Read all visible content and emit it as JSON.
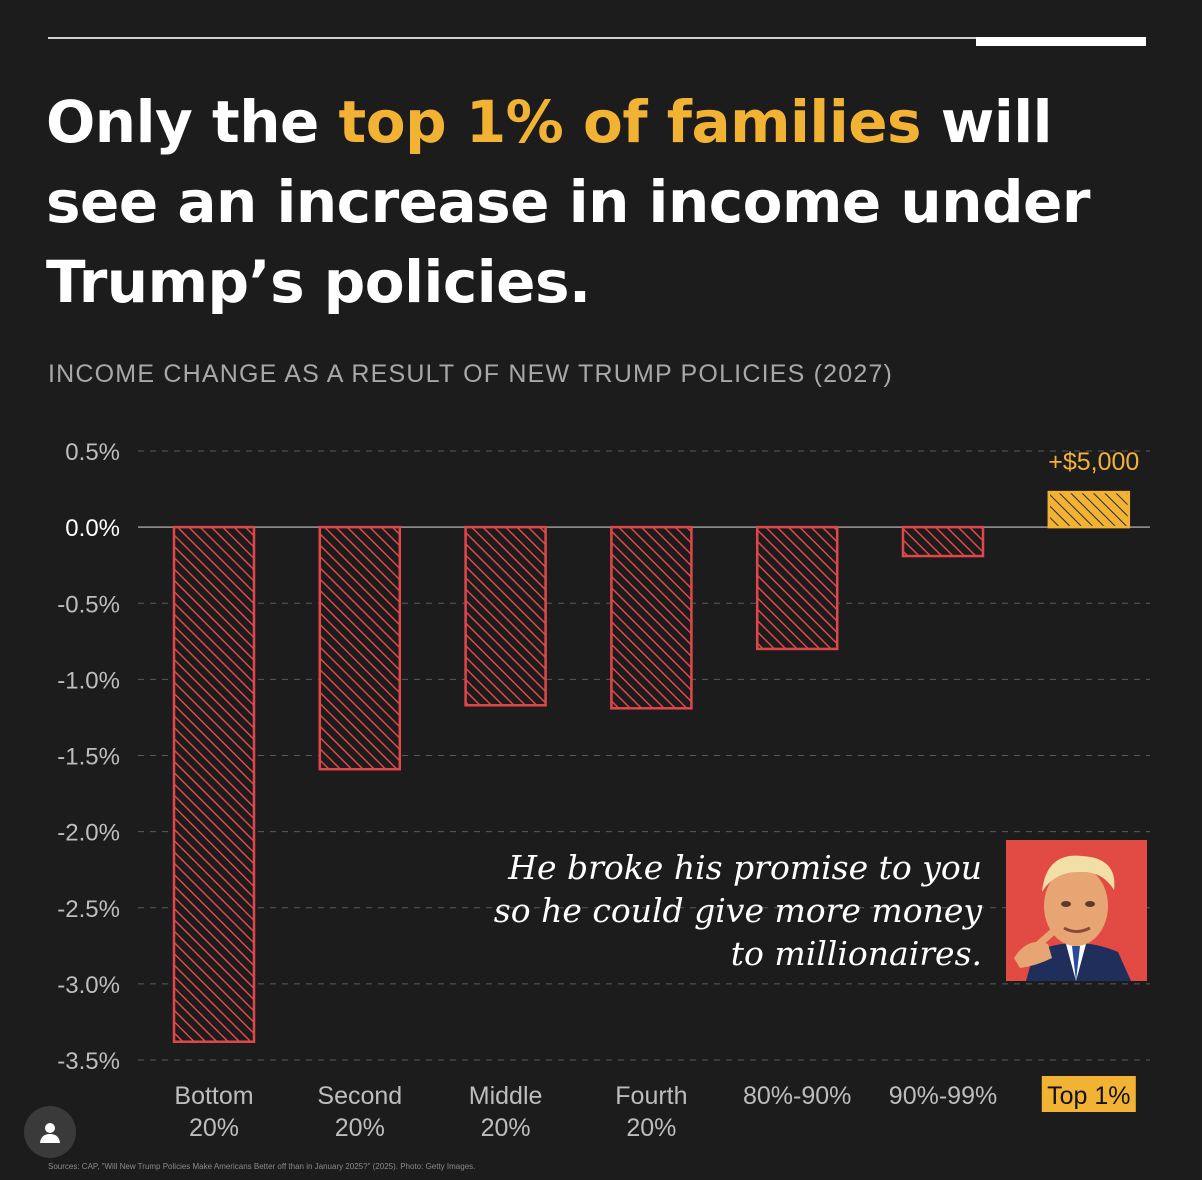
{
  "headline": {
    "part1": "Only the ",
    "highlight": "top 1% of families",
    "part2": " will see an increase in income under Trump’s policies."
  },
  "subtitle": "INCOME CHANGE AS A RESULT OF NEW TRUMP POLICIES (2027)",
  "quote": "He broke his promise to you so he could give more money to millionaires.",
  "source": "Sources: CAP, \"Will New Trump Policies Make Americans Better off than in January 2025?\" (2025). Photo: Getty Images.",
  "colors": {
    "background": "#1c1c1c",
    "negative_bar": "#e0474b",
    "positive_bar": "#f2b335",
    "text": "#ffffff",
    "muted": "#a8a8a8"
  },
  "icons": {
    "account": "person-icon"
  },
  "chart_data": {
    "type": "bar",
    "title": "INCOME CHANGE AS A RESULT OF NEW TRUMP POLICIES (2027)",
    "categories": [
      [
        "Bottom",
        "20%"
      ],
      [
        "Second",
        "20%"
      ],
      [
        "Middle",
        "20%"
      ],
      [
        "Fourth",
        "20%"
      ],
      [
        "80%-90%"
      ],
      [
        "90%-99%"
      ],
      [
        "Top 1%"
      ]
    ],
    "values": [
      -3.38,
      -1.59,
      -1.17,
      -1.19,
      -0.8,
      -0.19,
      0.23
    ],
    "ylim": [
      -3.5,
      0.5
    ],
    "yticks": [
      0.5,
      0,
      -0.5,
      -1,
      -1.5,
      -2,
      -2.5,
      -3,
      -3.5
    ],
    "ytick_labels": [
      "0.5%",
      "0.0%",
      "-0.5%",
      "-1.0%",
      "-1.5%",
      "-2.0%",
      "-2.5%",
      "-3.0%",
      "-3.5%"
    ],
    "grid": true,
    "annotations": [
      {
        "category_index": 6,
        "text": "+$5,000"
      }
    ],
    "highlight_category": 6
  }
}
